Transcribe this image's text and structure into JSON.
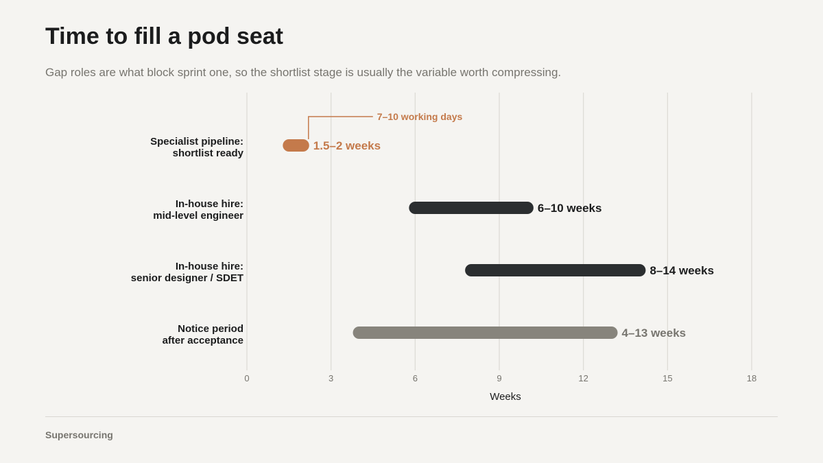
{
  "title": "Time to fill a pod seat",
  "subtitle": "Gap roles are what block sprint one, so the shortlist stage is usually the variable worth compressing.",
  "source": "Supersourcing",
  "colors": {
    "background": "#f5f4f1",
    "accent": "#c47a4b",
    "dark": "#2b2e30",
    "muted": "#87847c",
    "grid": "#dcdad5",
    "text": "#1b1c1d"
  },
  "chart_data": {
    "type": "range-bar",
    "xlabel": "Weeks",
    "xlim": [
      0,
      18
    ],
    "xticks": [
      0,
      3,
      6,
      9,
      12,
      15,
      18
    ],
    "grid": true,
    "rows": [
      {
        "label_lines": [
          "Specialist pipeline:",
          "shortlist ready"
        ],
        "start": 1.5,
        "end": 2,
        "value_label": "1.5–2 weeks",
        "color": "#c47a4b",
        "label_color": "#c47a4b"
      },
      {
        "label_lines": [
          "In-house hire:",
          "mid-level engineer"
        ],
        "start": 6,
        "end": 10,
        "value_label": "6–10 weeks",
        "color": "#2b2e30",
        "label_color": "#1b1c1d"
      },
      {
        "label_lines": [
          "In-house hire:",
          "senior designer / SDET"
        ],
        "start": 8,
        "end": 14,
        "value_label": "8–14 weeks",
        "color": "#2b2e30",
        "label_color": "#1b1c1d"
      },
      {
        "label_lines": [
          "Notice period",
          "after acceptance"
        ],
        "start": 4,
        "end": 13,
        "value_label": "4–13 weeks",
        "color": "#87847c",
        "label_color": "#77756f"
      }
    ],
    "annotation": {
      "text": "7–10 working days",
      "row": 0,
      "color": "#c47a4b"
    }
  }
}
